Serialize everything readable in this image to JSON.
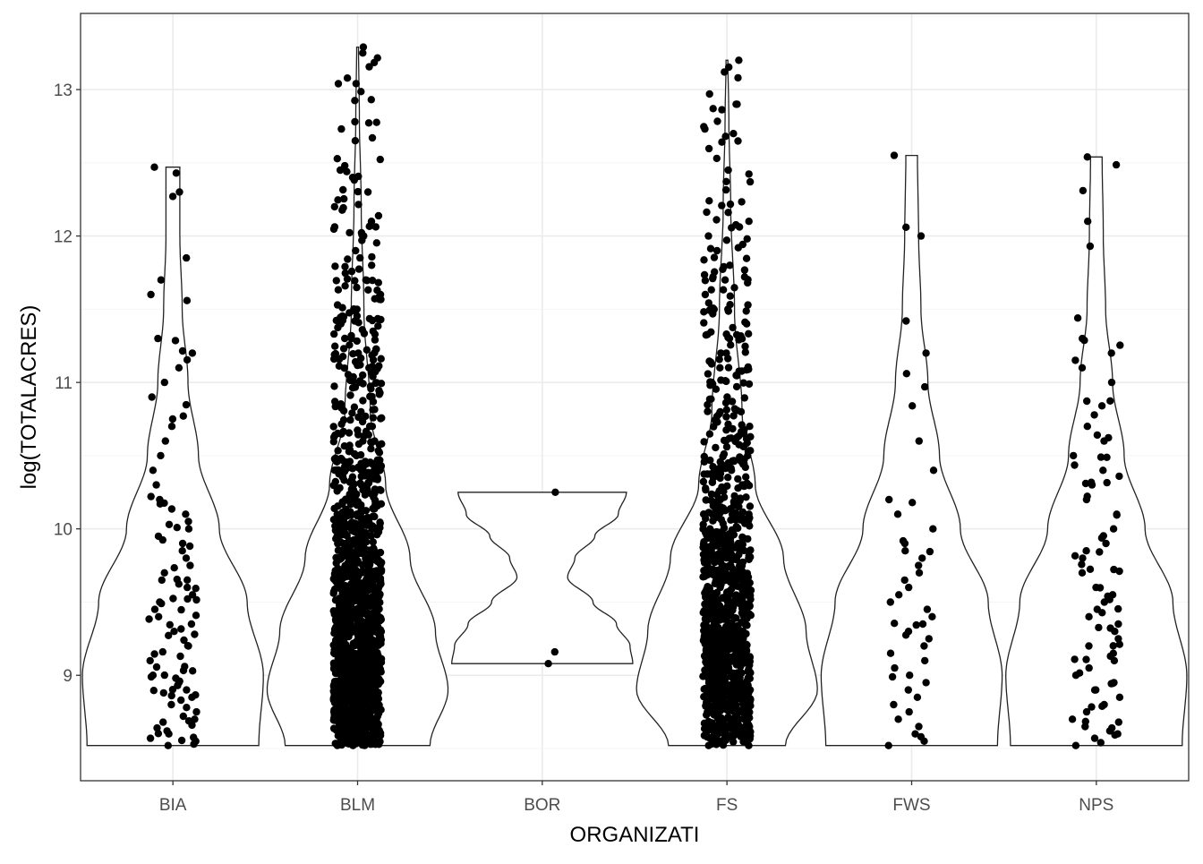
{
  "chart_data": {
    "type": "violin",
    "title": "",
    "xlabel": "ORGANIZATI",
    "ylabel": "log(TOTALACRES)",
    "categories": [
      "BIA",
      "BLM",
      "BOR",
      "FS",
      "FWS",
      "NPS"
    ],
    "ylim": [
      8.28,
      13.52
    ],
    "yticks": [
      9,
      10,
      11,
      12,
      13
    ],
    "grid": true,
    "legend": "none",
    "colors": {
      "points": "#000000",
      "violin_outline": "#222222",
      "panel_border": "#333333",
      "grid_major": "#ebebeb",
      "grid_minor": "#f5f5f5",
      "tick_label": "#4d4d4d"
    },
    "series": [
      {
        "category": "BIA",
        "min": 8.52,
        "max": 12.47,
        "max_density": 0.78,
        "profile": [
          [
            8.52,
            0.74
          ],
          [
            9.0,
            0.78
          ],
          [
            9.5,
            0.64
          ],
          [
            10.0,
            0.4
          ],
          [
            10.5,
            0.22
          ],
          [
            11.0,
            0.13
          ],
          [
            11.5,
            0.08
          ],
          [
            12.0,
            0.06
          ],
          [
            12.47,
            0.06
          ]
        ],
        "points": [
          8.52,
          8.53,
          8.55,
          8.57,
          8.6,
          8.62,
          8.64,
          8.66,
          8.68,
          8.7,
          8.72,
          8.75,
          8.78,
          8.8,
          8.83,
          8.85,
          8.88,
          8.9,
          8.93,
          8.95,
          8.98,
          9.0,
          9.03,
          9.06,
          9.1,
          9.13,
          9.16,
          9.2,
          9.24,
          9.28,
          9.3,
          9.35,
          9.4,
          9.45,
          9.5,
          9.55,
          9.6,
          9.65,
          9.7,
          9.75,
          9.8,
          9.85,
          9.9,
          9.95,
          10.0,
          10.05,
          10.1,
          10.2,
          10.3,
          10.4,
          10.5,
          10.6,
          10.7,
          10.75,
          10.9,
          11.0,
          11.1,
          11.2,
          11.3,
          11.6,
          11.7,
          11.85,
          12.27,
          12.3,
          12.43,
          12.47
        ],
        "n_points": 110
      },
      {
        "category": "BLM",
        "min": 8.52,
        "max": 13.29,
        "max_density": 1.0,
        "profile": [
          [
            8.52,
            0.8
          ],
          [
            8.9,
            1.0
          ],
          [
            9.3,
            0.86
          ],
          [
            9.8,
            0.58
          ],
          [
            10.3,
            0.31
          ],
          [
            10.8,
            0.14
          ],
          [
            11.5,
            0.07
          ],
          [
            12.2,
            0.04
          ],
          [
            12.8,
            0.02
          ],
          [
            13.29,
            0.01
          ]
        ],
        "points": [
          8.52,
          8.6,
          8.7,
          8.8,
          8.9,
          9.0,
          9.1,
          9.2,
          9.3,
          9.4,
          9.5,
          9.6,
          9.7,
          9.8,
          9.9,
          10.0,
          10.1,
          10.2,
          10.3,
          10.4,
          10.5,
          10.6,
          10.7,
          10.8,
          10.9,
          11.0,
          11.1,
          11.2,
          11.3,
          11.4,
          11.5,
          11.6,
          11.7,
          11.8,
          11.9,
          12.0,
          12.1,
          12.2,
          12.3,
          12.4,
          12.45,
          12.67,
          12.78,
          13.04,
          13.25,
          13.29
        ],
        "n_points": 1500
      },
      {
        "category": "BOR",
        "min": 9.08,
        "max": 10.25,
        "max_density": 1.0,
        "profile": [
          [
            9.08,
            1.0
          ],
          [
            9.2,
            0.97
          ],
          [
            9.35,
            0.82
          ],
          [
            9.5,
            0.56
          ],
          [
            9.67,
            0.28
          ],
          [
            9.8,
            0.36
          ],
          [
            9.95,
            0.58
          ],
          [
            10.1,
            0.84
          ],
          [
            10.25,
            0.93
          ]
        ],
        "points": [
          9.08,
          9.16,
          10.25
        ],
        "n_points": 3
      },
      {
        "category": "FS",
        "min": 8.52,
        "max": 13.2,
        "max_density": 0.96,
        "profile": [
          [
            8.52,
            0.62
          ],
          [
            8.9,
            0.96
          ],
          [
            9.3,
            0.84
          ],
          [
            9.8,
            0.6
          ],
          [
            10.3,
            0.3
          ],
          [
            10.8,
            0.16
          ],
          [
            11.5,
            0.08
          ],
          [
            12.2,
            0.04
          ],
          [
            12.8,
            0.02
          ],
          [
            13.2,
            0.01
          ]
        ],
        "points": [
          8.52,
          8.6,
          8.7,
          8.8,
          8.9,
          9.0,
          9.1,
          9.2,
          9.3,
          9.4,
          9.5,
          9.6,
          9.7,
          9.8,
          9.9,
          10.0,
          10.1,
          10.2,
          10.3,
          10.4,
          10.5,
          10.6,
          10.7,
          10.8,
          10.9,
          11.0,
          11.1,
          11.2,
          11.3,
          11.4,
          11.5,
          11.6,
          11.7,
          11.8,
          11.9,
          12.0,
          12.1,
          12.24,
          12.37,
          12.45,
          12.53,
          12.87,
          12.9,
          12.97,
          13.12,
          13.2
        ],
        "n_points": 1100
      },
      {
        "category": "FWS",
        "min": 8.52,
        "max": 12.55,
        "max_density": 0.78,
        "profile": [
          [
            8.52,
            0.74
          ],
          [
            9.0,
            0.78
          ],
          [
            9.5,
            0.66
          ],
          [
            10.0,
            0.42
          ],
          [
            10.5,
            0.24
          ],
          [
            11.0,
            0.14
          ],
          [
            11.5,
            0.08
          ],
          [
            12.0,
            0.06
          ],
          [
            12.55,
            0.05
          ]
        ],
        "points": [
          8.52,
          8.55,
          8.58,
          8.6,
          8.65,
          8.7,
          8.75,
          8.8,
          8.85,
          8.9,
          8.95,
          9.0,
          9.05,
          9.1,
          9.15,
          9.2,
          9.25,
          9.3,
          9.35,
          9.4,
          9.45,
          9.5,
          9.55,
          9.6,
          9.65,
          9.7,
          9.75,
          9.8,
          9.85,
          9.9,
          10.0,
          10.1,
          10.2,
          10.4,
          10.6,
          10.84,
          10.97,
          11.06,
          11.2,
          11.42,
          12.0,
          12.06,
          12.55
        ],
        "n_points": 50
      },
      {
        "category": "NPS",
        "min": 8.52,
        "max": 12.54,
        "max_density": 0.78,
        "profile": [
          [
            8.52,
            0.74
          ],
          [
            9.0,
            0.78
          ],
          [
            9.5,
            0.66
          ],
          [
            10.0,
            0.42
          ],
          [
            10.5,
            0.24
          ],
          [
            11.0,
            0.14
          ],
          [
            11.5,
            0.08
          ],
          [
            12.0,
            0.06
          ],
          [
            12.54,
            0.05
          ]
        ],
        "points": [
          8.52,
          8.54,
          8.57,
          8.6,
          8.62,
          8.65,
          8.68,
          8.7,
          8.75,
          8.8,
          8.85,
          8.9,
          8.95,
          9.0,
          9.05,
          9.1,
          9.15,
          9.2,
          9.25,
          9.3,
          9.35,
          9.4,
          9.45,
          9.5,
          9.55,
          9.6,
          9.7,
          9.8,
          9.9,
          10.0,
          10.1,
          10.2,
          10.3,
          10.4,
          10.5,
          10.6,
          10.7,
          10.84,
          11.0,
          11.1,
          11.2,
          11.3,
          11.44,
          11.93,
          12.1,
          12.31,
          12.54
        ],
        "n_points": 95
      }
    ]
  }
}
